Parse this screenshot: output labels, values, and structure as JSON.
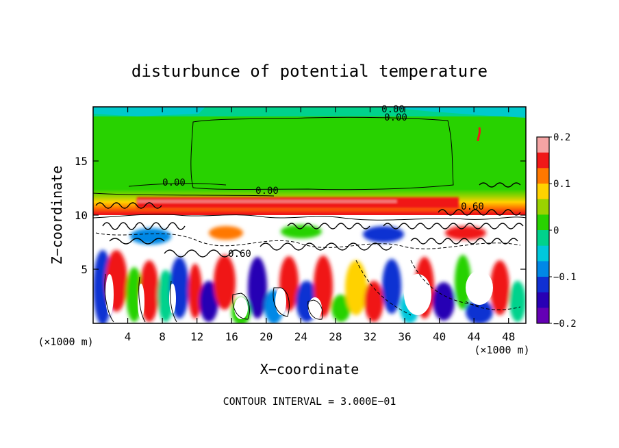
{
  "chart_data": {
    "type": "heatmap",
    "title": "disturbunce of potential temperature",
    "xlabel": "X−coordinate",
    "ylabel": "Z−coordinate",
    "x_unit": "(×1000 m)",
    "y_unit": "(×1000 m)",
    "xlim": [
      0,
      50
    ],
    "ylim": [
      0,
      20
    ],
    "x_ticks": [
      4,
      8,
      12,
      16,
      20,
      24,
      28,
      32,
      36,
      40,
      44,
      48
    ],
    "x_tick_labels": [
      "4",
      "8",
      "12",
      "16",
      "20",
      "24",
      "28",
      "32",
      "36",
      "40",
      "44",
      "48"
    ],
    "y_ticks": [
      5,
      10,
      15
    ],
    "y_tick_labels": [
      "5",
      "10",
      "15"
    ],
    "colorbar": {
      "min": -0.2,
      "max": 0.2,
      "ticks": [
        0.2,
        0.1,
        0,
        -0.1,
        -0.2
      ],
      "tick_labels": [
        "0.2",
        "0.1",
        "0",
        "−0.1",
        "−0.2"
      ],
      "colors": [
        "#f4a4a4",
        "#f01818",
        "#ff7800",
        "#ffd200",
        "#9ad200",
        "#28d200",
        "#00d28c",
        "#00c8dc",
        "#0088e6",
        "#1030d2",
        "#2800b4",
        "#6400b4"
      ]
    },
    "contour_labels": [
      "0.00",
      "0.00",
      "0.00",
      "0.00",
      "0.60",
      "0.60"
    ],
    "contour_interval_text": "CONTOUR INTERVAL = 3.000E−01",
    "features": {
      "upper_layer_value": 0,
      "inversion_band_z": [
        10.5,
        12
      ],
      "inversion_band_value": 0.15,
      "mixed_layer_top_z": 10
    }
  }
}
